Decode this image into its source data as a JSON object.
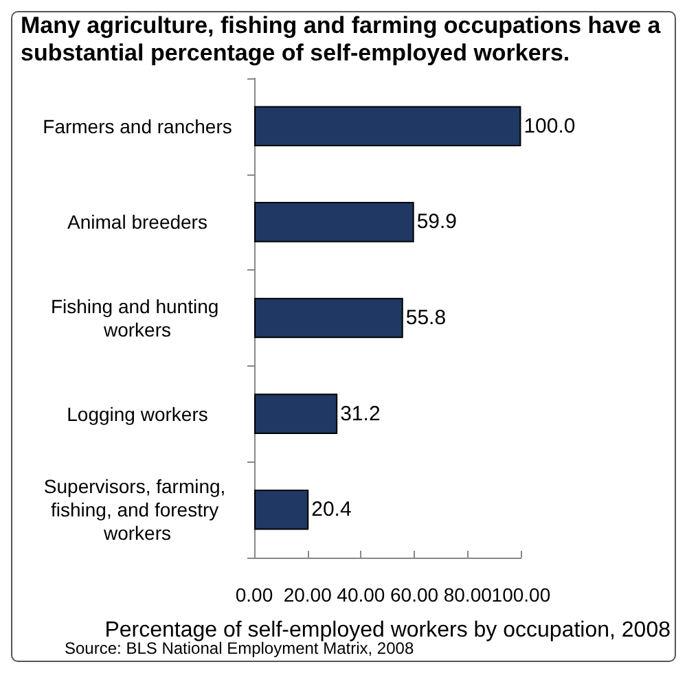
{
  "chart_data": {
    "type": "bar",
    "orientation": "horizontal",
    "title": "Many agriculture, fishing and farming occupations have a substantial percentage of self-employed workers.",
    "categories": [
      "Farmers and ranchers",
      "Animal breeders",
      "Fishing and hunting workers",
      "Logging workers",
      "Supervisors, farming, fishing, and forestry workers"
    ],
    "values": [
      100.0,
      59.9,
      55.8,
      31.2,
      20.4
    ],
    "value_labels": [
      "100.0",
      "59.9",
      "55.8",
      "31.2",
      "20.4"
    ],
    "color": "#1f3864",
    "xlim": [
      0,
      100
    ],
    "xticks": [
      {
        "value": 0,
        "label": "0.00"
      },
      {
        "value": 20,
        "label": "20.00"
      },
      {
        "value": 40,
        "label": "40.00"
      },
      {
        "value": 60,
        "label": "60.00"
      },
      {
        "value": 80,
        "label": "80.00"
      },
      {
        "value": 100,
        "label": "100.00"
      }
    ],
    "xlabel": "Percentage of self-employed workers by occupation, 2008",
    "annotations": [
      "Source: BLS National Employment  Matrix, 2008"
    ],
    "grid": false
  }
}
